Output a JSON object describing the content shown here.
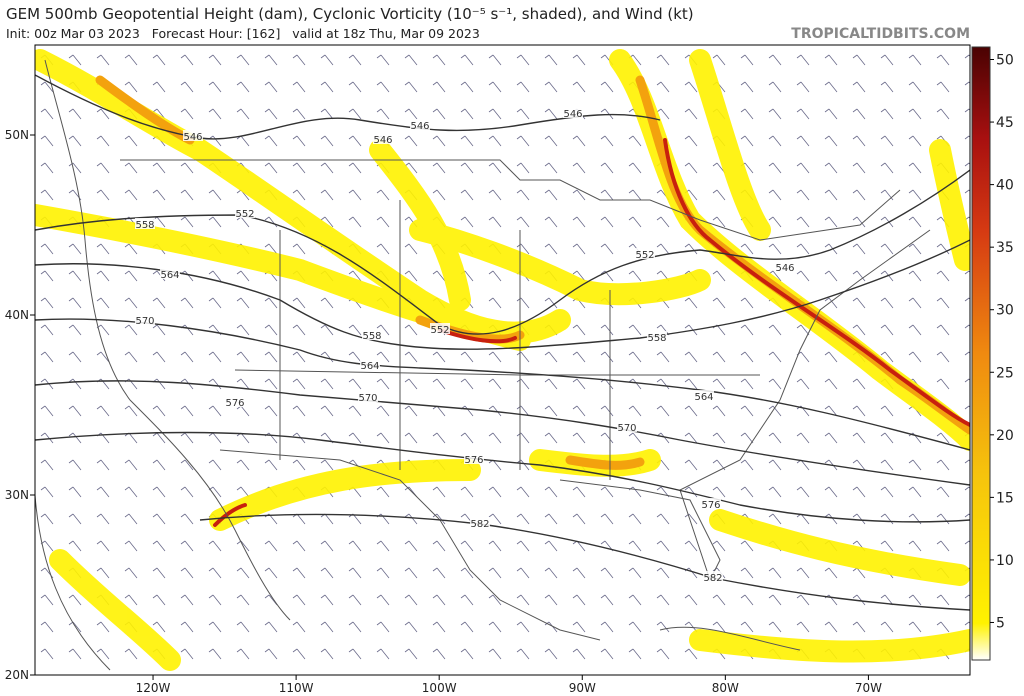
{
  "header": {
    "title": "GEM 500mb Geopotential Height (dam), Cyclonic Vorticity (10⁻⁵ s⁻¹, shaded), and Wind (kt)",
    "subtitle": "Init: 00z Mar 03 2023   Forecast Hour: [162]   valid at 18z Thu, Mar 09 2023",
    "watermark": "TROPICALTIDBITS.COM"
  },
  "map": {
    "xlim": [
      -128.25,
      -62.9
    ],
    "ylim": [
      20,
      55
    ],
    "xticks": [
      {
        "value": -120,
        "label": "120W"
      },
      {
        "value": -110,
        "label": "110W"
      },
      {
        "value": -100,
        "label": "100W"
      },
      {
        "value": -90,
        "label": "90W"
      },
      {
        "value": -80,
        "label": "80W"
      },
      {
        "value": -70,
        "label": "70W"
      }
    ],
    "yticks": [
      {
        "value": 20,
        "label": "20N"
      },
      {
        "value": 30,
        "label": "30N"
      },
      {
        "value": 40,
        "label": "40N"
      },
      {
        "value": 50,
        "label": "50N"
      }
    ],
    "contour_labels": [
      546,
      546,
      546,
      546,
      552,
      558,
      564,
      570,
      552,
      558,
      564,
      570,
      576,
      552,
      546,
      558,
      564,
      570,
      576,
      576,
      582,
      582
    ]
  },
  "colorbar": {
    "lim": [
      2,
      51
    ],
    "ticks": [
      5,
      10,
      15,
      20,
      25,
      30,
      35,
      40,
      45,
      50
    ]
  }
}
